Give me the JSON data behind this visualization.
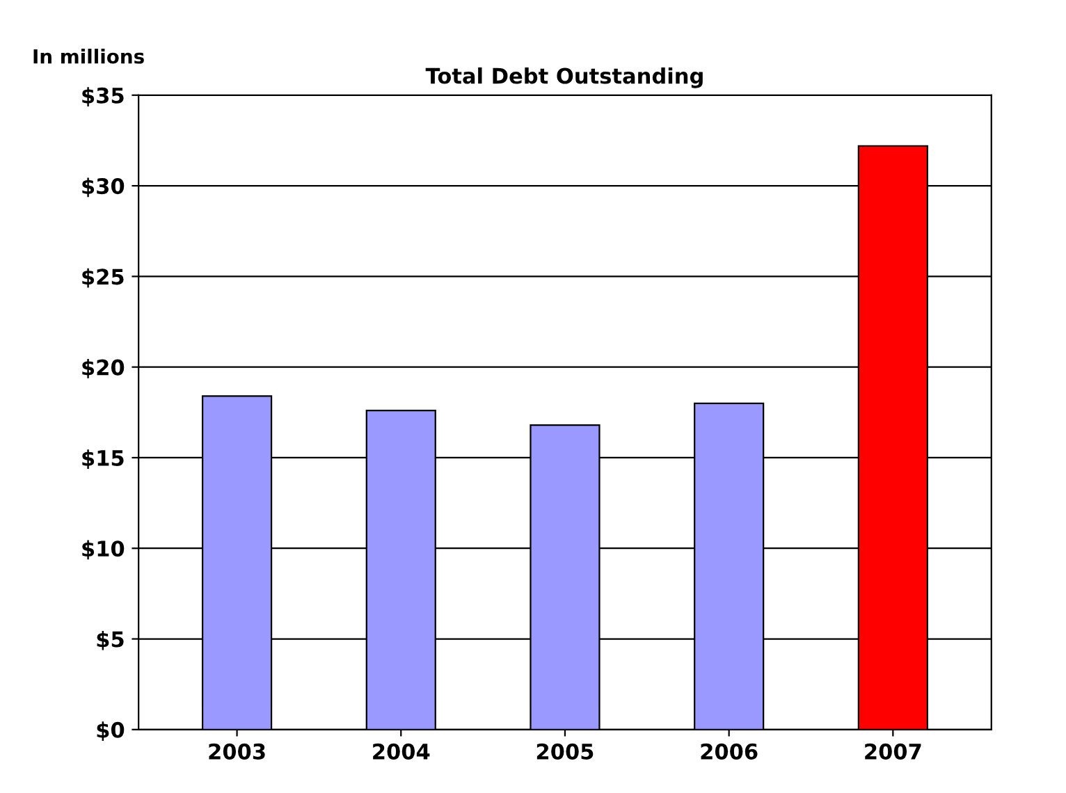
{
  "chart_data": {
    "type": "bar",
    "title": "Total Debt Outstanding",
    "ylabel": "In millions",
    "categories": [
      "2003",
      "2004",
      "2005",
      "2006",
      "2007"
    ],
    "values": [
      18.4,
      17.6,
      16.8,
      18.0,
      32.2
    ],
    "colors": [
      "#9999ff",
      "#9999ff",
      "#9999ff",
      "#9999ff",
      "#ff0000"
    ],
    "ylim": [
      0,
      35
    ],
    "yticks": [
      {
        "value": 0,
        "label": "$0"
      },
      {
        "value": 5,
        "label": "$5"
      },
      {
        "value": 10,
        "label": "$10"
      },
      {
        "value": 15,
        "label": "$15"
      },
      {
        "value": 20,
        "label": "$20"
      },
      {
        "value": 25,
        "label": "$25"
      },
      {
        "value": 30,
        "label": "$30"
      },
      {
        "value": 35,
        "label": "$35"
      }
    ],
    "grid": "y"
  }
}
